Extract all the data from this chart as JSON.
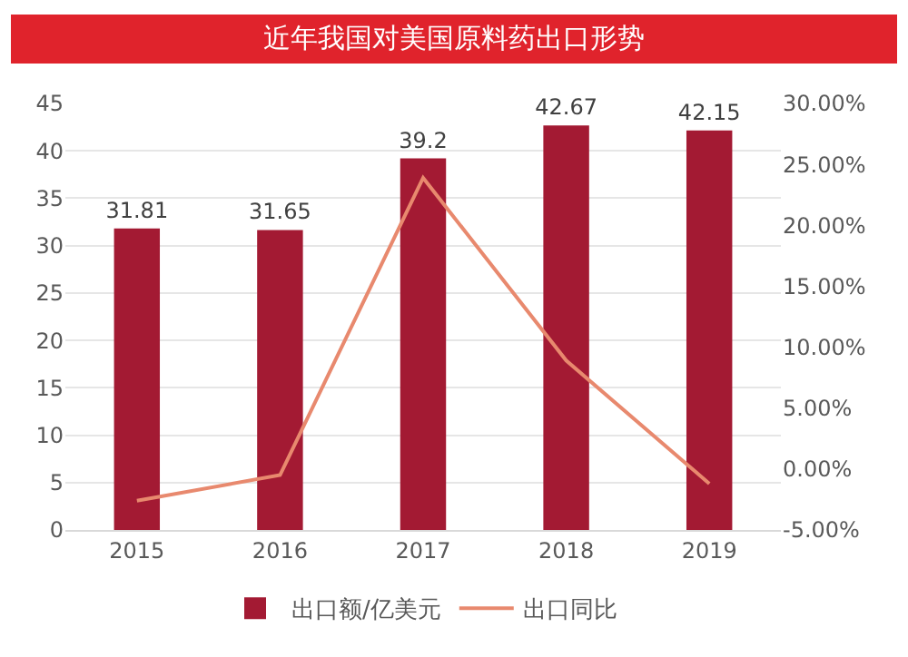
{
  "chart_data": {
    "type": "bar",
    "title": "近年我国对美国原料药出口形势",
    "categories": [
      "2015",
      "2016",
      "2017",
      "2018",
      "2019"
    ],
    "series": [
      {
        "name": "出口额/亿美元",
        "color": "#a31a33",
        "values": [
          31.81,
          31.65,
          39.2,
          42.67,
          42.15
        ],
        "value_labels": [
          "31.81",
          "31.65",
          "39.2",
          "42.67",
          "42.15"
        ]
      },
      {
        "name": "出口同比",
        "type": "line",
        "axis": "y2",
        "color": "#e8896e",
        "values": [
          -2.6,
          -0.5,
          23.9,
          8.9,
          -1.2
        ]
      }
    ],
    "ylim": [
      0,
      45
    ],
    "yticks": [
      0,
      5,
      10,
      15,
      20,
      25,
      30,
      35,
      40,
      45
    ],
    "y2lim": [
      -5,
      30
    ],
    "y2ticks": [
      {
        "value": -5,
        "label": "-5.00%"
      },
      {
        "value": 0,
        "label": "0.00%"
      },
      {
        "value": 5,
        "label": "5.00%"
      },
      {
        "value": 10,
        "label": "10.00%"
      },
      {
        "value": 15,
        "label": "15.00%"
      },
      {
        "value": 20,
        "label": "20.00%"
      },
      {
        "value": 25,
        "label": "25.00%"
      },
      {
        "value": 30,
        "label": "30.00%"
      }
    ],
    "grid": "y",
    "legend": "bottom",
    "marker": "none",
    "line_style": "solid"
  }
}
